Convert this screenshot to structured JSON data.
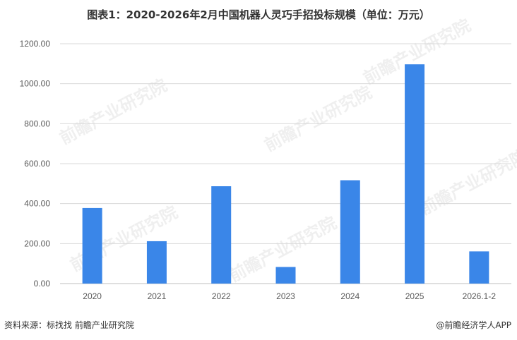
{
  "title": "图表1：2020-2026年2月中国机器人灵巧手招投标规模（单位：万元）",
  "source": "资料来源：标找找 前瞻产业研究院",
  "brand": "@前瞻经济学人APP",
  "watermark_text": "前瞻产业研究院",
  "chart_data": {
    "type": "bar",
    "title": "图表1：2020-2026年2月中国机器人灵巧手招投标规模（单位：万元）",
    "categories": [
      "2020",
      "2021",
      "2022",
      "2023",
      "2024",
      "2025",
      "2026.1-2"
    ],
    "values": [
      378,
      212,
      487,
      83,
      517,
      1097,
      161
    ],
    "ylim": [
      0,
      1200
    ],
    "yticks": [
      "0.00",
      "200.00",
      "400.00",
      "600.00",
      "800.00",
      "1000.00",
      "1200.00"
    ],
    "grid": true,
    "bar_color": "#3a86e8",
    "legend": "none"
  }
}
